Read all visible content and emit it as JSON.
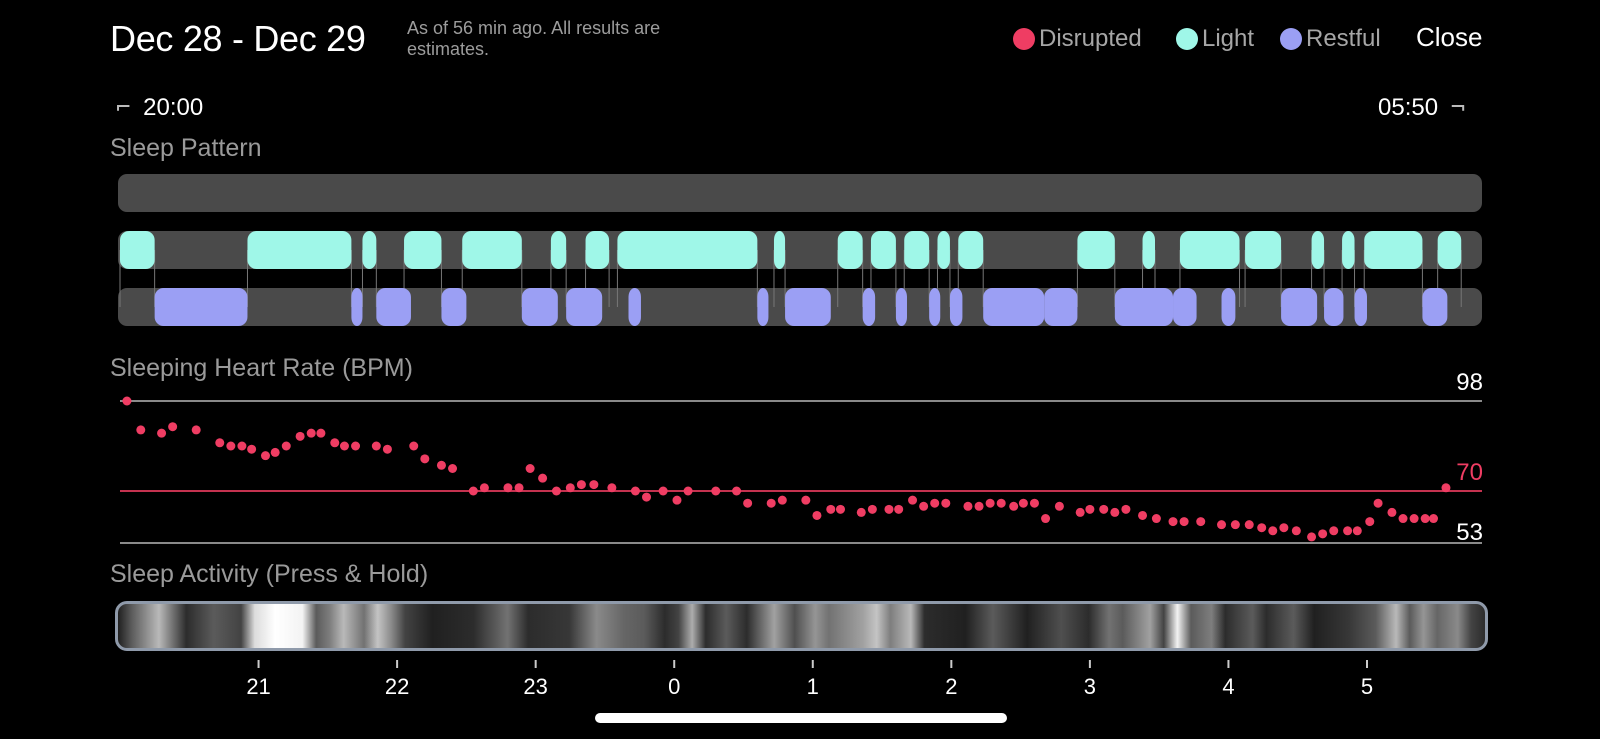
{
  "header": {
    "title": "Dec 28 - Dec 29",
    "subtitle": "As of 56 min ago. All results are estimates.",
    "legend": [
      {
        "label": "Disrupted",
        "color": "#ef3d63"
      },
      {
        "label": "Light",
        "color": "#9ff7e8"
      },
      {
        "label": "Restful",
        "color": "#9b9ff4"
      }
    ],
    "close_label": "Close"
  },
  "time_range": {
    "start": "20:00",
    "end": "05:50"
  },
  "sleep_pattern": {
    "title": "Sleep Pattern",
    "colors": {
      "track": "#4a4a4a",
      "light": "#9ff7e8",
      "restful": "#9b9ff4"
    },
    "light_segments_hours": [
      [
        0.0,
        0.25
      ],
      [
        0.92,
        1.67
      ],
      [
        1.75,
        1.85
      ],
      [
        2.05,
        2.32
      ],
      [
        2.47,
        2.9
      ],
      [
        3.11,
        3.22
      ],
      [
        3.36,
        3.53
      ],
      [
        3.59,
        4.6
      ],
      [
        4.72,
        4.8
      ],
      [
        5.18,
        5.36
      ],
      [
        5.42,
        5.6
      ],
      [
        5.66,
        5.84
      ],
      [
        5.9,
        5.99
      ],
      [
        6.05,
        6.23
      ],
      [
        6.91,
        7.18
      ],
      [
        7.38,
        7.47
      ],
      [
        7.65,
        8.08
      ],
      [
        8.12,
        8.38
      ],
      [
        8.6,
        8.69
      ],
      [
        8.82,
        8.91
      ],
      [
        8.98,
        9.4
      ],
      [
        9.51,
        9.68
      ]
    ],
    "restful_segments_hours": [
      [
        0.25,
        0.92
      ],
      [
        1.67,
        1.75
      ],
      [
        1.85,
        2.1
      ],
      [
        2.32,
        2.5
      ],
      [
        2.9,
        3.16
      ],
      [
        3.22,
        3.48
      ],
      [
        3.67,
        3.76
      ],
      [
        4.6,
        4.68
      ],
      [
        4.8,
        5.13
      ],
      [
        5.36,
        5.45
      ],
      [
        5.6,
        5.68
      ],
      [
        5.84,
        5.92
      ],
      [
        5.99,
        6.08
      ],
      [
        6.23,
        6.67
      ],
      [
        6.67,
        6.91
      ],
      [
        7.18,
        7.6
      ],
      [
        7.6,
        7.77
      ],
      [
        7.95,
        8.05
      ],
      [
        8.38,
        8.64
      ],
      [
        8.69,
        8.83
      ],
      [
        8.91,
        9.0
      ],
      [
        9.4,
        9.58
      ]
    ]
  },
  "heart_rate": {
    "title": "Sleeping Heart Rate (BPM)",
    "max_label": "98",
    "avg_label": "70",
    "min_label": "53"
  },
  "sleep_activity": {
    "title": "Sleep Activity (Press & Hold)",
    "intensity_stops": [
      [
        0.0,
        0.05
      ],
      [
        0.01,
        0.3
      ],
      [
        0.03,
        0.7
      ],
      [
        0.05,
        0.1
      ],
      [
        0.07,
        0.3
      ],
      [
        0.09,
        0.2
      ],
      [
        0.1,
        0.85
      ],
      [
        0.115,
        1.0
      ],
      [
        0.135,
        0.95
      ],
      [
        0.145,
        0.3
      ],
      [
        0.155,
        0.45
      ],
      [
        0.165,
        0.7
      ],
      [
        0.18,
        0.4
      ],
      [
        0.19,
        0.75
      ],
      [
        0.2,
        0.5
      ],
      [
        0.21,
        0.2
      ],
      [
        0.23,
        0.05
      ],
      [
        0.26,
        0.1
      ],
      [
        0.285,
        0.4
      ],
      [
        0.3,
        0.1
      ],
      [
        0.33,
        0.15
      ],
      [
        0.35,
        0.5
      ],
      [
        0.37,
        0.35
      ],
      [
        0.385,
        0.3
      ],
      [
        0.4,
        0.1
      ],
      [
        0.41,
        0.2
      ],
      [
        0.42,
        0.65
      ],
      [
        0.43,
        0.1
      ],
      [
        0.445,
        0.3
      ],
      [
        0.46,
        0.1
      ],
      [
        0.48,
        0.6
      ],
      [
        0.495,
        0.25
      ],
      [
        0.51,
        0.55
      ],
      [
        0.52,
        0.4
      ],
      [
        0.545,
        0.6
      ],
      [
        0.555,
        0.75
      ],
      [
        0.565,
        0.45
      ],
      [
        0.58,
        0.7
      ],
      [
        0.59,
        0.1
      ],
      [
        0.62,
        0.05
      ],
      [
        0.64,
        0.3
      ],
      [
        0.665,
        0.05
      ],
      [
        0.69,
        0.25
      ],
      [
        0.71,
        0.1
      ],
      [
        0.725,
        0.4
      ],
      [
        0.735,
        0.3
      ],
      [
        0.755,
        0.6
      ],
      [
        0.765,
        0.2
      ],
      [
        0.775,
        0.95
      ],
      [
        0.785,
        0.3
      ],
      [
        0.8,
        0.45
      ],
      [
        0.81,
        0.1
      ],
      [
        0.83,
        0.3
      ],
      [
        0.84,
        0.1
      ],
      [
        0.86,
        0.3
      ],
      [
        0.875,
        0.05
      ],
      [
        0.9,
        0.15
      ],
      [
        0.92,
        0.3
      ],
      [
        0.935,
        0.7
      ],
      [
        0.945,
        0.3
      ],
      [
        0.955,
        0.55
      ],
      [
        0.965,
        0.35
      ],
      [
        0.98,
        0.5
      ],
      [
        0.99,
        0.2
      ],
      [
        1.0,
        0.1
      ]
    ]
  },
  "chart_data": [
    {
      "type": "scatter",
      "title": "Sleeping Heart Rate (BPM)",
      "x_unit": "hours since 20:00",
      "xlim": [
        0,
        9.83
      ],
      "ylim": [
        53,
        98
      ],
      "reference_lines": [
        98,
        70,
        53
      ],
      "x": [
        0.05,
        0.15,
        0.3,
        0.38,
        0.55,
        0.72,
        0.8,
        0.88,
        0.95,
        1.05,
        1.12,
        1.2,
        1.3,
        1.38,
        1.45,
        1.55,
        1.62,
        1.7,
        1.85,
        1.93,
        2.12,
        2.2,
        2.32,
        2.4,
        2.55,
        2.63,
        2.8,
        2.88,
        2.96,
        3.05,
        3.15,
        3.25,
        3.33,
        3.42,
        3.55,
        3.72,
        3.8,
        3.92,
        4.02,
        4.1,
        4.3,
        4.45,
        4.53,
        4.7,
        4.78,
        4.95,
        5.03,
        5.13,
        5.2,
        5.35,
        5.43,
        5.55,
        5.62,
        5.72,
        5.8,
        5.88,
        5.96,
        6.12,
        6.2,
        6.28,
        6.36,
        6.45,
        6.52,
        6.6,
        6.68,
        6.78,
        6.93,
        7.0,
        7.1,
        7.18,
        7.26,
        7.38,
        7.48,
        7.6,
        7.68,
        7.8,
        7.95,
        8.05,
        8.15,
        8.24,
        8.32,
        8.4,
        8.49,
        8.6,
        8.68,
        8.76,
        8.86,
        8.93,
        9.02,
        9.08,
        9.18,
        9.26,
        9.34,
        9.42,
        9.48,
        9.57
      ],
      "y": [
        98,
        89,
        88,
        90,
        89,
        85,
        84,
        84,
        83,
        81,
        82,
        84,
        87,
        88,
        88,
        85,
        84,
        84,
        84,
        83,
        84,
        80,
        78,
        77,
        70,
        71,
        71,
        71,
        77,
        74,
        70,
        71,
        72,
        72,
        71,
        70,
        68,
        70,
        67,
        70,
        70,
        70,
        66,
        66,
        67,
        67,
        62,
        64,
        64,
        63,
        64,
        64,
        64,
        67,
        65,
        66,
        66,
        65,
        65,
        66,
        66,
        65,
        66,
        66,
        61,
        65,
        63,
        64,
        64,
        63,
        64,
        62,
        61,
        60,
        60,
        60,
        59,
        59,
        59,
        58,
        57,
        58,
        57,
        55,
        56,
        57,
        57,
        57,
        60,
        66,
        63,
        61,
        61,
        61,
        61,
        71
      ]
    },
    {
      "type": "bar",
      "title": "Sleep Activity (Press & Hold)",
      "x_ticks": [
        "21",
        "22",
        "23",
        "0",
        "1",
        "2",
        "3",
        "4",
        "5"
      ],
      "x_tick_hours": [
        1,
        2,
        3,
        4,
        5,
        6,
        7,
        8,
        9
      ]
    }
  ]
}
